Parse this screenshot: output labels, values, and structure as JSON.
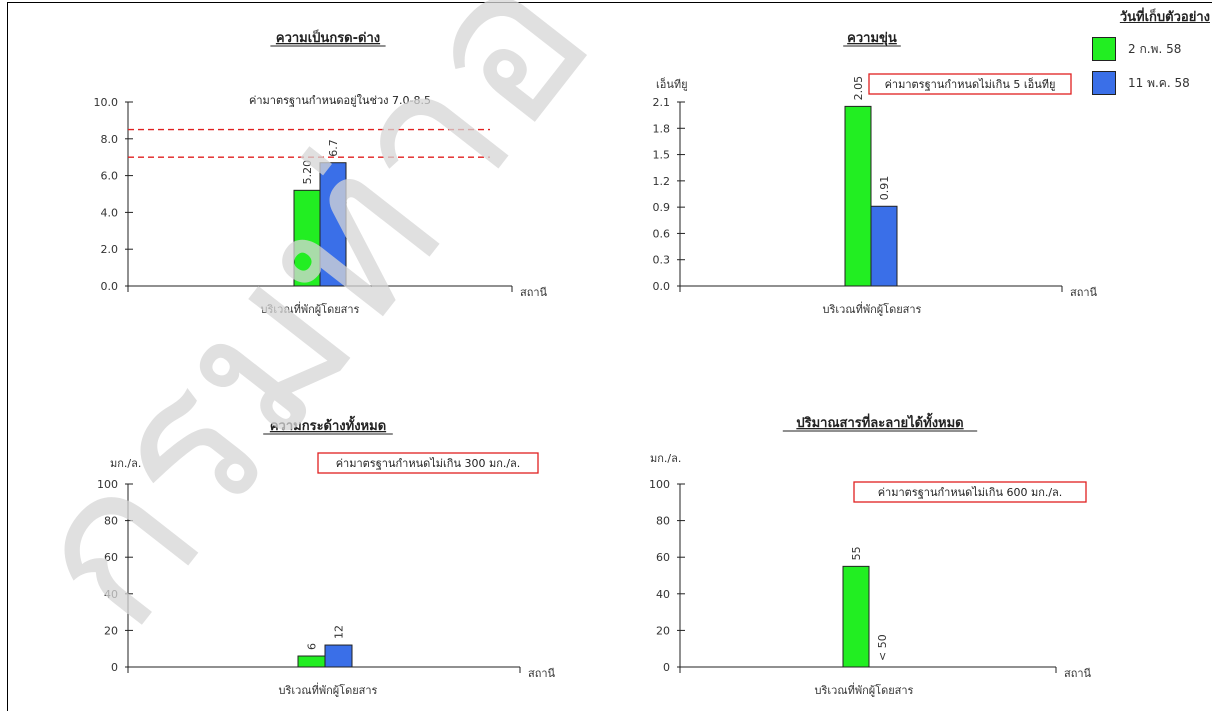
{
  "legend": {
    "title": "วันที่เก็บตัวอย่าง",
    "items": [
      {
        "label": "2 ก.พ. 58",
        "color": "#22ee22"
      },
      {
        "label": "11 พ.ค. 58",
        "color": "#3a6fe8"
      }
    ]
  },
  "watermark": {
    "text": "กรมท่าอากาศยาน",
    "color": "#d6d6d6"
  },
  "chart_data": [
    {
      "type": "bar",
      "title": "ความเป็นกรด-ด่าง",
      "ylabel": "",
      "xlabel": "สถานี",
      "categories": [
        "บริเวณที่พักผู้โดยสาร"
      ],
      "ylim": [
        0,
        10
      ],
      "yticks": [
        "0.0",
        "2.0",
        "4.0",
        "6.0",
        "8.0",
        "10.0"
      ],
      "yticks_values": [
        0,
        2,
        4,
        6,
        8,
        10
      ],
      "series": [
        {
          "name": "2 ก.พ. 58",
          "values": [
            5.2
          ],
          "labels": [
            "5.20"
          ]
        },
        {
          "name": "11 พ.ค. 58",
          "values": [
            6.7
          ],
          "labels": [
            "6.7"
          ]
        }
      ],
      "standard": {
        "text": "ค่ามาตรฐานกำหนดอยู่ในช่วง 7.0-8.5",
        "boxed": false,
        "lines": [
          7.0,
          8.5
        ],
        "line_color": "#e02020"
      }
    },
    {
      "type": "bar",
      "title": "ความขุ่น",
      "ylabel": "เอ็นทียู",
      "xlabel": "สถานี",
      "categories": [
        "บริเวณที่พักผู้โดยสาร"
      ],
      "ylim": [
        0,
        2.1
      ],
      "yticks": [
        "0.0",
        "0.3",
        "0.6",
        "0.9",
        "1.2",
        "1.5",
        "1.8",
        "2.1"
      ],
      "yticks_values": [
        0,
        0.3,
        0.6,
        0.9,
        1.2,
        1.5,
        1.8,
        2.1
      ],
      "series": [
        {
          "name": "2 ก.พ. 58",
          "values": [
            2.05
          ],
          "labels": [
            "2.05"
          ]
        },
        {
          "name": "11 พ.ค. 58",
          "values": [
            0.91
          ],
          "labels": [
            "0.91"
          ]
        }
      ],
      "standard": {
        "text": "ค่ามาตรฐานกำหนดไม่เกิน 5 เอ็นทียู",
        "boxed": true,
        "lines": [],
        "line_color": "#e02020"
      }
    },
    {
      "type": "bar",
      "title": "ความกระด้างทั้งหมด",
      "ylabel": "มก./ล.",
      "xlabel": "สถานี",
      "categories": [
        "บริเวณที่พักผู้โดยสาร"
      ],
      "ylim": [
        0,
        100
      ],
      "yticks": [
        "0",
        "20",
        "40",
        "60",
        "80",
        "100"
      ],
      "yticks_values": [
        0,
        20,
        40,
        60,
        80,
        100
      ],
      "series": [
        {
          "name": "2 ก.พ. 58",
          "values": [
            6
          ],
          "labels": [
            "6"
          ]
        },
        {
          "name": "11 พ.ค. 58",
          "values": [
            12
          ],
          "labels": [
            "12"
          ]
        }
      ],
      "standard": {
        "text": "ค่ามาตรฐานกำหนดไม่เกิน 300 มก./ล.",
        "boxed": true,
        "lines": [],
        "line_color": "#e02020"
      }
    },
    {
      "type": "bar",
      "title": "ปริมาณสารที่ละลายได้ทั้งหมด",
      "ylabel": "มก./ล.",
      "xlabel": "สถานี",
      "categories": [
        "บริเวณที่พักผู้โดยสาร"
      ],
      "ylim": [
        0,
        100
      ],
      "yticks": [
        "0",
        "20",
        "40",
        "60",
        "80",
        "100"
      ],
      "yticks_values": [
        0,
        20,
        40,
        60,
        80,
        100
      ],
      "series": [
        {
          "name": "2 ก.พ. 58",
          "values": [
            55
          ],
          "labels": [
            "55"
          ]
        },
        {
          "name": "11 พ.ค. 58",
          "values": [
            0
          ],
          "labels": [
            "< 50"
          ]
        }
      ],
      "standard": {
        "text": "ค่ามาตรฐานกำหนดไม่เกิน 600 มก./ล.",
        "boxed": true,
        "lines": [],
        "line_color": "#e02020"
      }
    }
  ]
}
